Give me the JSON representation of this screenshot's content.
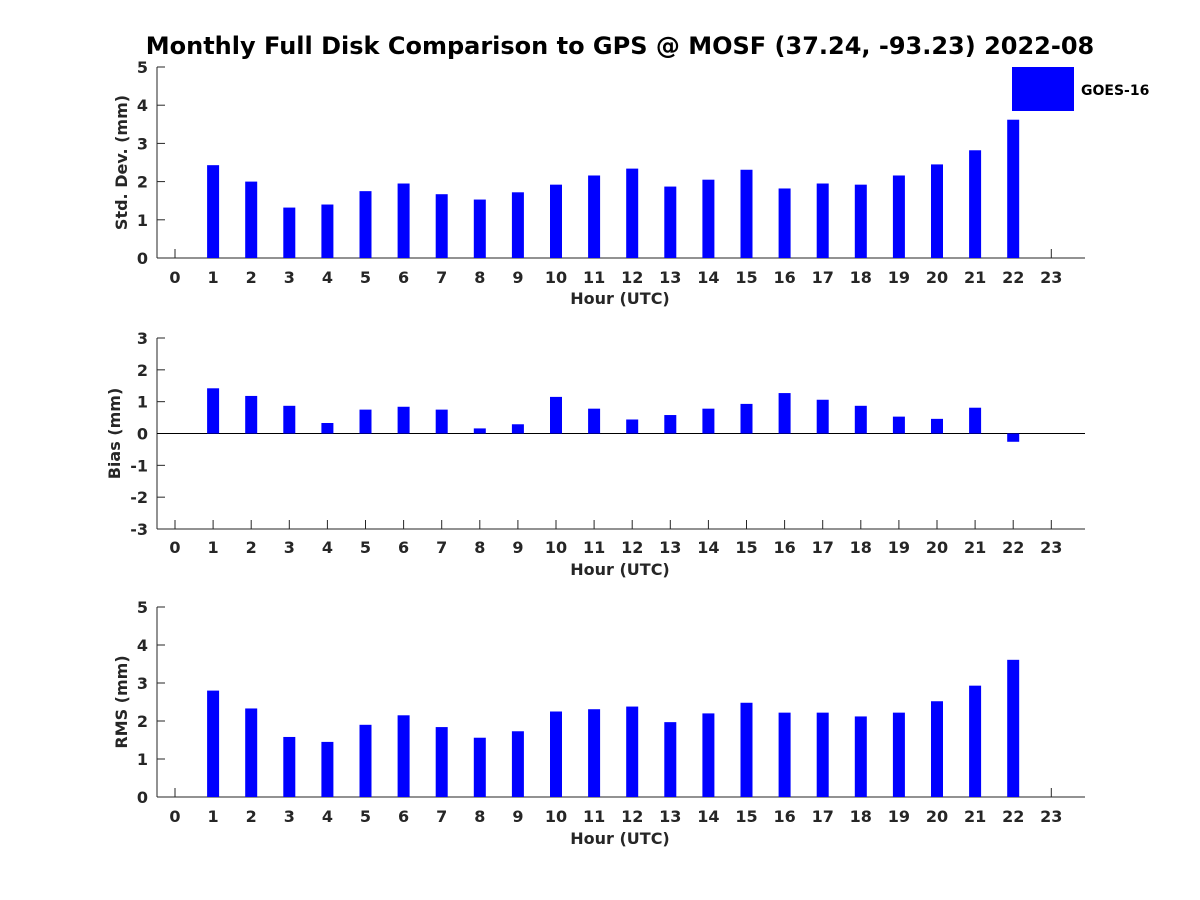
{
  "title": "Monthly Full Disk Comparison to GPS @ MOSF (37.24, -93.23) 2022-08",
  "colors": {
    "bar": "#0000ff",
    "axis": "#262626"
  },
  "legend": {
    "label": "GOES-16",
    "position": "top-right"
  },
  "chart_data": [
    {
      "type": "bar",
      "xlabel": "Hour (UTC)",
      "ylabel": "Std. Dev. (mm)",
      "ylim": [
        0,
        5
      ],
      "yticks": [
        0,
        1,
        2,
        3,
        4,
        5
      ],
      "categories": [
        "0",
        "1",
        "2",
        "3",
        "4",
        "5",
        "6",
        "7",
        "8",
        "9",
        "10",
        "11",
        "12",
        "13",
        "14",
        "15",
        "16",
        "17",
        "18",
        "19",
        "20",
        "21",
        "22",
        "23"
      ],
      "series": [
        {
          "name": "GOES-16",
          "values": [
            null,
            2.43,
            2.0,
            1.32,
            1.4,
            1.75,
            1.95,
            1.67,
            1.53,
            1.72,
            1.92,
            2.16,
            2.34,
            1.87,
            2.05,
            2.31,
            1.82,
            1.95,
            1.92,
            2.16,
            2.45,
            2.82,
            3.62,
            null
          ]
        }
      ]
    },
    {
      "type": "bar",
      "xlabel": "Hour (UTC)",
      "ylabel": "Bias (mm)",
      "ylim": [
        -3,
        3
      ],
      "yticks": [
        -3,
        -2,
        -1,
        0,
        1,
        2,
        3
      ],
      "categories": [
        "0",
        "1",
        "2",
        "3",
        "4",
        "5",
        "6",
        "7",
        "8",
        "9",
        "10",
        "11",
        "12",
        "13",
        "14",
        "15",
        "16",
        "17",
        "18",
        "19",
        "20",
        "21",
        "22",
        "23"
      ],
      "series": [
        {
          "name": "GOES-16",
          "values": [
            null,
            1.42,
            1.18,
            0.87,
            0.33,
            0.75,
            0.84,
            0.75,
            0.16,
            0.29,
            1.15,
            0.78,
            0.44,
            0.58,
            0.78,
            0.93,
            1.27,
            1.06,
            0.87,
            0.53,
            0.46,
            0.81,
            -0.26,
            null
          ]
        }
      ]
    },
    {
      "type": "bar",
      "xlabel": "Hour (UTC)",
      "ylabel": "RMS (mm)",
      "ylim": [
        0,
        5
      ],
      "yticks": [
        0,
        1,
        2,
        3,
        4,
        5
      ],
      "categories": [
        "0",
        "1",
        "2",
        "3",
        "4",
        "5",
        "6",
        "7",
        "8",
        "9",
        "10",
        "11",
        "12",
        "13",
        "14",
        "15",
        "16",
        "17",
        "18",
        "19",
        "20",
        "21",
        "22",
        "23"
      ],
      "series": [
        {
          "name": "GOES-16",
          "values": [
            null,
            2.8,
            2.33,
            1.58,
            1.45,
            1.9,
            2.15,
            1.84,
            1.56,
            1.73,
            2.25,
            2.31,
            2.38,
            1.97,
            2.2,
            2.48,
            2.22,
            2.22,
            2.12,
            2.22,
            2.52,
            2.93,
            3.61,
            null
          ]
        }
      ]
    }
  ]
}
